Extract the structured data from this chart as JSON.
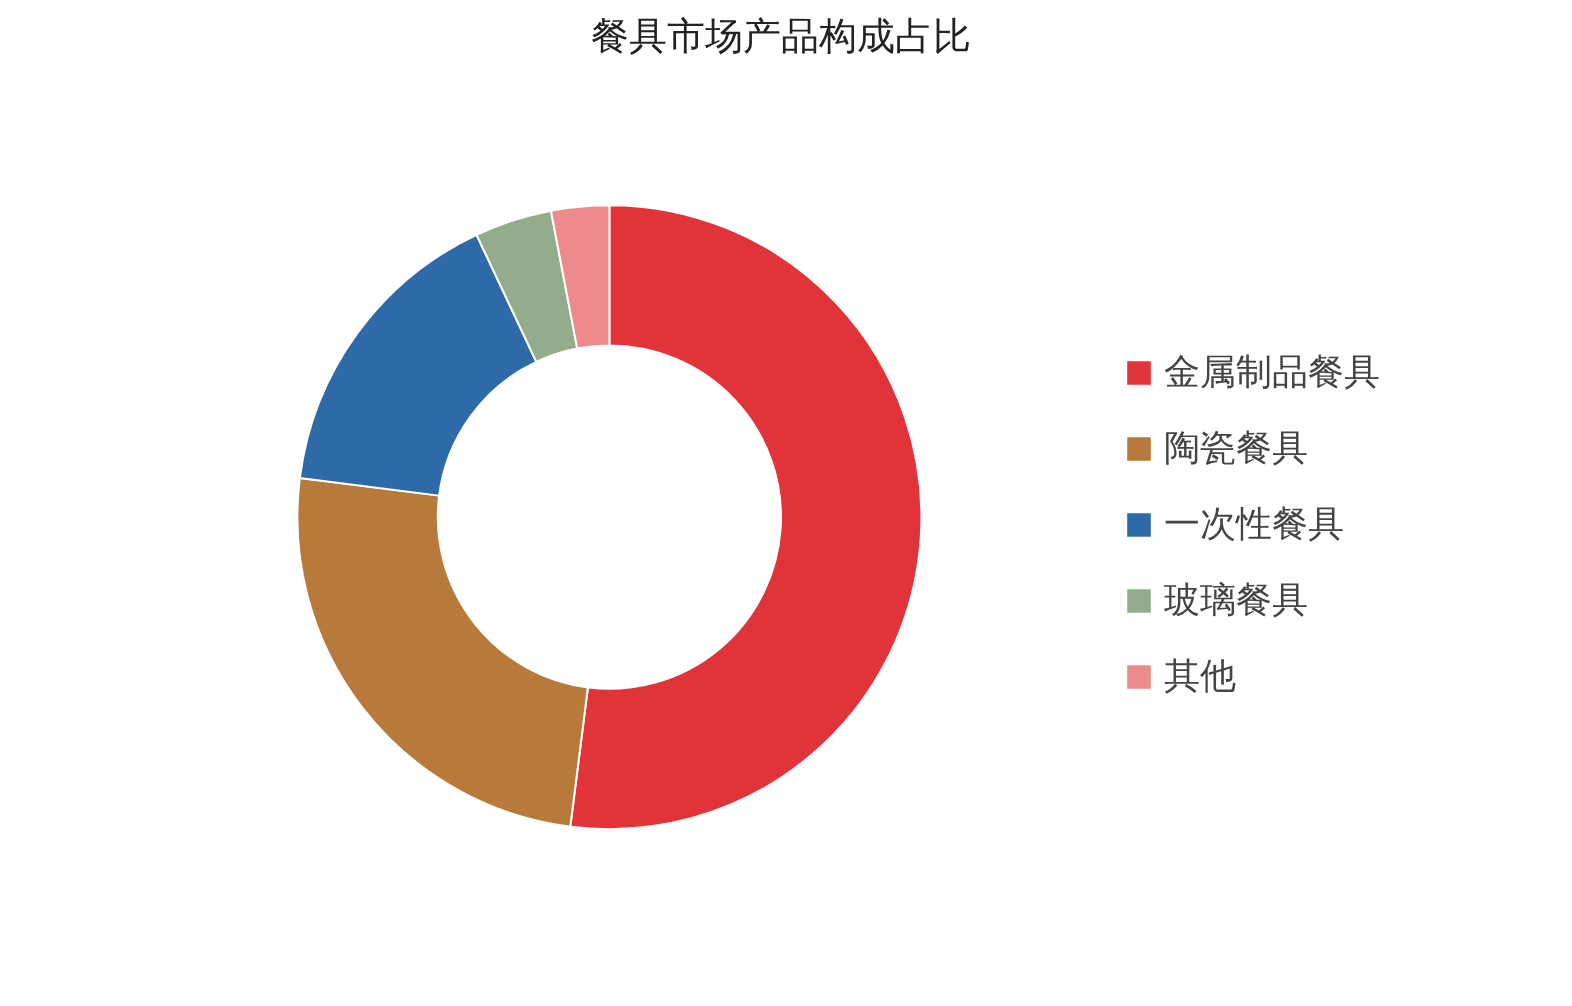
{
  "chart_data": {
    "type": "donut",
    "title": "餐具市场产品构成占比",
    "categories": [
      "金属制品餐具",
      "陶瓷餐具",
      "一次性餐具",
      "玻璃餐具",
      "其他"
    ],
    "values": [
      52,
      25,
      16,
      4,
      3
    ],
    "colors": [
      "#e0333a",
      "#b87a3a",
      "#2f6aa8",
      "#93ad8c",
      "#ec8a8c"
    ],
    "legend": "right"
  }
}
